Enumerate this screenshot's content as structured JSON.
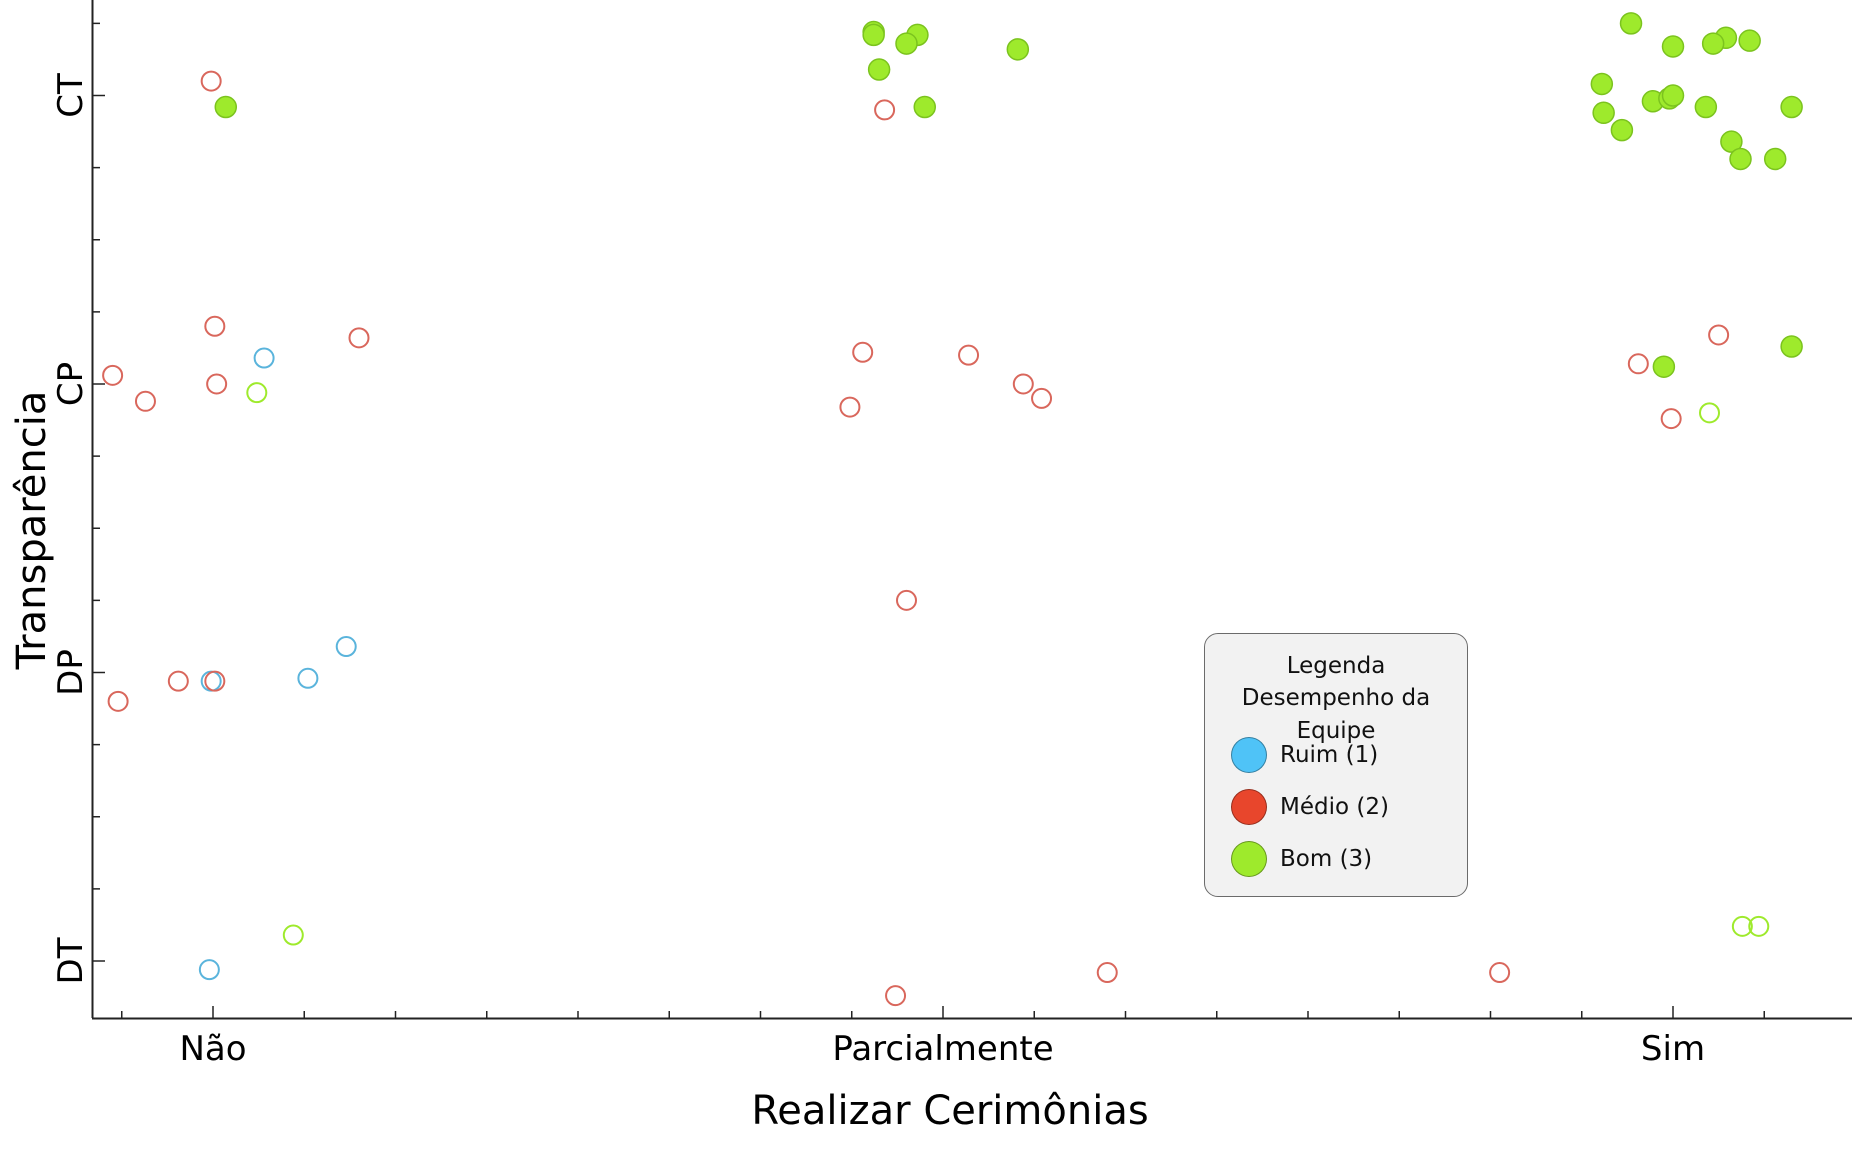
{
  "chart_data": {
    "type": "scatter",
    "title": "",
    "xlabel": "Realizar Cerimônias",
    "ylabel": "Transparência",
    "categories": [
      "Não",
      "Parcialmente",
      "Sim"
    ],
    "y_categories": [
      "DT",
      "DP",
      "CP",
      "CT"
    ],
    "jitter": "points are horizontally and vertically jittered around the category positions",
    "grid": false,
    "legend": {
      "title": "Legenda",
      "subtitle": "Desempenho da Equipe",
      "placement": "lower-right",
      "entries": [
        {
          "name": "Ruim (1)",
          "color": "#4fc3f7"
        },
        {
          "name": "Médio (2)",
          "color": "#e8462c"
        },
        {
          "name": "Bom (3)",
          "color": "#9eea2c"
        }
      ]
    },
    "series": [
      {
        "name": "Ruim (1)",
        "color": "#5ab4dc",
        "points": [
          {
            "x": 0.28,
            "y": 2.09,
            "filled": false
          },
          {
            "x": -0.01,
            "y": 0.97,
            "filled": false
          },
          {
            "x": 0.52,
            "y": 0.98,
            "filled": false
          },
          {
            "x": 0.73,
            "y": 1.09,
            "filled": false
          },
          {
            "x": -0.02,
            "y": -0.03,
            "filled": false
          }
        ]
      },
      {
        "name": "Médio (2)",
        "color": "#d9675c",
        "points": [
          {
            "x": -0.01,
            "y": 3.05,
            "filled": false
          },
          {
            "x": 0.01,
            "y": 2.2,
            "filled": false
          },
          {
            "x": 0.8,
            "y": 2.16,
            "filled": false
          },
          {
            "x": -0.55,
            "y": 2.03,
            "filled": false
          },
          {
            "x": 0.02,
            "y": 2.0,
            "filled": false
          },
          {
            "x": -0.37,
            "y": 1.94,
            "filled": false
          },
          {
            "x": -0.19,
            "y": 0.97,
            "filled": false
          },
          {
            "x": 0.01,
            "y": 0.97,
            "filled": false
          },
          {
            "x": -0.52,
            "y": 0.9,
            "filled": false
          },
          {
            "x": 3.68,
            "y": 2.95,
            "filled": false
          },
          {
            "x": 3.56,
            "y": 2.11,
            "filled": false
          },
          {
            "x": 4.14,
            "y": 2.1,
            "filled": false
          },
          {
            "x": 4.44,
            "y": 2.0,
            "filled": false
          },
          {
            "x": 4.54,
            "y": 1.95,
            "filled": false
          },
          {
            "x": 3.49,
            "y": 1.92,
            "filled": false
          },
          {
            "x": 3.8,
            "y": 1.25,
            "filled": false
          },
          {
            "x": 3.74,
            "y": -0.12,
            "filled": false
          },
          {
            "x": 4.9,
            "y": -0.04,
            "filled": false
          },
          {
            "x": 8.25,
            "y": 2.17,
            "filled": false
          },
          {
            "x": 7.81,
            "y": 2.07,
            "filled": false
          },
          {
            "x": 7.99,
            "y": 1.88,
            "filled": false
          },
          {
            "x": 7.05,
            "y": -0.04,
            "filled": false
          }
        ]
      },
      {
        "name": "Bom (3)",
        "color": "#9eea2c",
        "points": [
          {
            "x": 0.07,
            "y": 2.96,
            "filled": true
          },
          {
            "x": 0.24,
            "y": 1.97,
            "filled": false
          },
          {
            "x": 0.44,
            "y": 0.09,
            "filled": false
          },
          {
            "x": 3.62,
            "y": 3.22,
            "filled": true
          },
          {
            "x": 3.62,
            "y": 3.21,
            "filled": true
          },
          {
            "x": 3.86,
            "y": 3.21,
            "filled": true
          },
          {
            "x": 3.8,
            "y": 3.18,
            "filled": true
          },
          {
            "x": 4.41,
            "y": 3.16,
            "filled": true
          },
          {
            "x": 3.65,
            "y": 3.09,
            "filled": true
          },
          {
            "x": 3.9,
            "y": 2.96,
            "filled": true
          },
          {
            "x": 7.77,
            "y": 3.25,
            "filled": true
          },
          {
            "x": 8.29,
            "y": 3.2,
            "filled": true
          },
          {
            "x": 8.42,
            "y": 3.19,
            "filled": true
          },
          {
            "x": 8.0,
            "y": 3.17,
            "filled": true
          },
          {
            "x": 8.22,
            "y": 3.18,
            "filled": true
          },
          {
            "x": 7.61,
            "y": 3.04,
            "filled": true
          },
          {
            "x": 9.15,
            "y": 3.04,
            "filled": true
          },
          {
            "x": 7.89,
            "y": 2.98,
            "filled": true
          },
          {
            "x": 7.98,
            "y": 2.99,
            "filled": true
          },
          {
            "x": 8.0,
            "y": 3.0,
            "filled": true
          },
          {
            "x": 7.62,
            "y": 2.94,
            "filled": true
          },
          {
            "x": 8.18,
            "y": 2.96,
            "filled": true
          },
          {
            "x": 8.65,
            "y": 2.96,
            "filled": true
          },
          {
            "x": 7.72,
            "y": 2.88,
            "filled": true
          },
          {
            "x": 8.32,
            "y": 2.84,
            "filled": true
          },
          {
            "x": 8.37,
            "y": 2.78,
            "filled": true
          },
          {
            "x": 8.56,
            "y": 2.78,
            "filled": true
          },
          {
            "x": 8.65,
            "y": 2.13,
            "filled": true
          },
          {
            "x": 7.95,
            "y": 2.06,
            "filled": true
          },
          {
            "x": 8.2,
            "y": 1.9,
            "filled": false
          },
          {
            "x": 8.38,
            "y": 0.12,
            "filled": false
          },
          {
            "x": 8.47,
            "y": 0.12,
            "filled": false
          }
        ]
      }
    ]
  }
}
